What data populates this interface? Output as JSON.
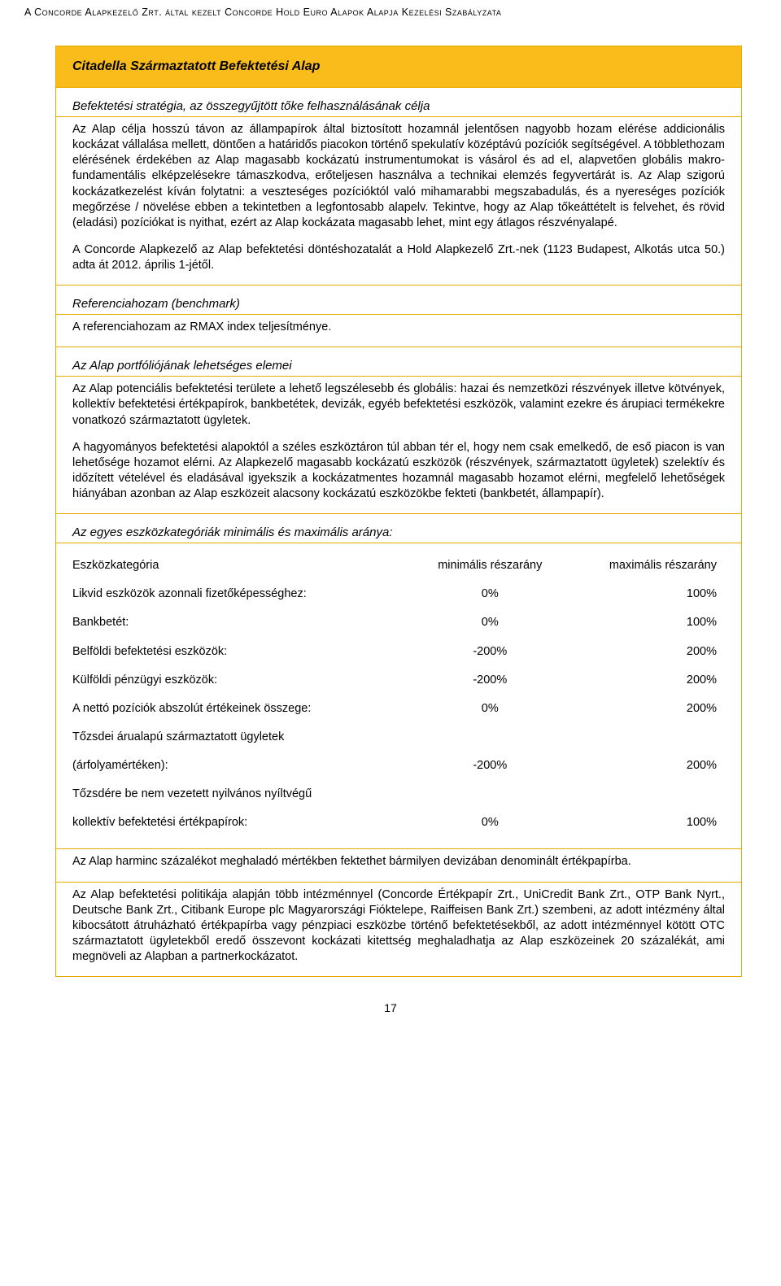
{
  "header": "A Concorde Alapkezelő Zrt. által kezelt Concorde Hold Euro Alapok Alapja Kezelési Szabályzata",
  "fund_title": "Citadella Származtatott Befektetési Alap",
  "strategy_label": "Befektetési stratégia, az összegyűjtött tőke felhasználásának célja",
  "strategy_p1": "Az Alap célja hosszú távon az állampapírok által biztosított hozamnál jelentősen nagyobb hozam elérése addicionális kockázat vállalása mellett, döntően a határidős piacokon történő spekulatív középtávú pozíciók segítségével. A többlethozam elérésének érdekében az Alap magasabb kockázatú instrumentumokat is vásárol és ad el, alapvetően globális makro-fundamentális elképzelésekre támaszkodva, erőteljesen használva a technikai elemzés fegyvertárát is. Az Alap szigorú kockázatkezelést kíván folytatni: a veszteséges pozícióktól való mihamarabbi megszabadulás, és a nyereséges pozíciók megőrzése / növelése ebben a tekintetben a legfontosabb alapelv. Tekintve, hogy az Alap tőkeáttételt is felvehet, és rövid (eladási) pozíciókat is nyithat, ezért az Alap kockázata magasabb lehet, mint egy átlagos részvényalapé.",
  "strategy_p2": "A Concorde Alapkezelő az Alap befektetési döntéshozatalát a Hold Alapkezelő Zrt.-nek (1123 Budapest, Alkotás utca 50.) adta át 2012. április 1-jétől.",
  "benchmark_label": "Referenciahozam (benchmark)",
  "benchmark_text": "A referenciahozam az RMAX index teljesítménye.",
  "portfolio_label": "Az Alap portfóliójának lehetséges elemei",
  "portfolio_p1": "Az Alap potenciális befektetési területe a lehető legszélesebb és globális: hazai és nemzetközi részvények illetve kötvények, kollektív befektetési értékpapírok, bankbetétek, devizák, egyéb befektetési eszközök, valamint ezekre és árupiaci termékekre vonatkozó származtatott ügyletek.",
  "portfolio_p2": "A hagyományos befektetési alapoktól a széles eszköztáron túl abban tér el, hogy nem csak emelkedő, de eső piacon is van lehetősége hozamot elérni. Az Alapkezelő magasabb kockázatú eszközök (részvények, származtatott ügyletek) szelektív és időzített vételével és eladásával igyekszik a kockázatmentes hozamnál magasabb hozamot elérni, megfelelő lehetőségek hiányában azonban az Alap eszközeit alacsony kockázatú eszközökbe fekteti (bankbetét, állampapír).",
  "weights_label": "Az egyes eszközkategóriák minimális és maximális aránya:",
  "table": {
    "head": {
      "cat": "Eszközkategória",
      "min": "minimális részarány",
      "max": "maximális részarány"
    },
    "rows": [
      {
        "cat": "Likvid eszközök azonnali fizetőképességhez:",
        "min": "0%",
        "max": "100%"
      },
      {
        "cat": "Bankbetét:",
        "min": "0%",
        "max": "100%"
      },
      {
        "cat": "Belföldi befektetési eszközök:",
        "min": "-200%",
        "max": "200%"
      },
      {
        "cat": "Külföldi pénzügyi eszközök:",
        "min": "-200%",
        "max": "200%"
      },
      {
        "cat": "A nettó pozíciók abszolút értékeinek összege:",
        "min": "0%",
        "max": "200%"
      },
      {
        "cat": "Tőzsdei árualapú származtatott ügyletek",
        "min": "",
        "max": ""
      },
      {
        "cat": "(árfolyamértéken):",
        "min": "-200%",
        "max": "200%"
      },
      {
        "cat": "Tőzsdére be nem vezetett nyilvános nyíltvégű",
        "min": "",
        "max": ""
      },
      {
        "cat": "kollektív befektetési értékpapírok:",
        "min": "0%",
        "max": "100%"
      }
    ]
  },
  "footer_p1": "Az Alap harminc százalékot meghaladó mértékben fektethet bármilyen devizában denominált értékpapírba.",
  "footer_p2": "Az Alap befektetési politikája alapján több intézménnyel (Concorde Értékpapír Zrt., UniCredit Bank Zrt., OTP Bank Nyrt., Deutsche Bank Zrt., Citibank Europe plc Magyarországi Fióktelepe, Raiffeisen Bank Zrt.) szembeni, az adott intézmény által kibocsátott átruházható értékpapírba vagy pénzpiaci eszközbe történő befektetésekből, az adott intézménnyel kötött OTC származtatott ügyletekből eredő összevont kockázati kitettség meghaladhatja az Alap eszközeinek 20 százalékát, ami megnöveli az Alapban a partnerkockázatot.",
  "page_number": "17"
}
